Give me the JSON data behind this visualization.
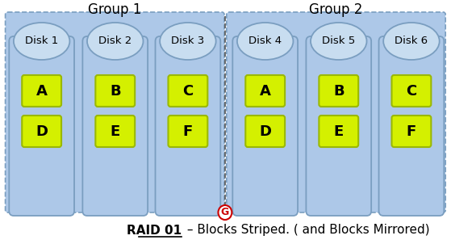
{
  "title": "RAID 01",
  "subtitle": " – Blocks Striped. ( and Blocks Mirrored)",
  "group1_label": "Group 1",
  "group2_label": "Group 2",
  "disk_labels": [
    "Disk 1",
    "Disk 2",
    "Disk 3",
    "Disk 4",
    "Disk 5",
    "Disk 6"
  ],
  "block_labels_group1": [
    [
      "A",
      "D"
    ],
    [
      "B",
      "E"
    ],
    [
      "C",
      "F"
    ]
  ],
  "block_labels_group2": [
    [
      "A",
      "D"
    ],
    [
      "B",
      "E"
    ],
    [
      "C",
      "F"
    ]
  ],
  "disk_body_color": "#adc8e8",
  "disk_top_color": "#c8ddf0",
  "disk_border_color": "#7a9ec0",
  "block_color": "#d4f000",
  "block_border_color": "#9ab800",
  "background_color": "#ffffff",
  "group_box_color": "#adc8e8",
  "group_box_border": "#7a9ec0",
  "separator_color": "#555555",
  "g_icon_color": "#cc0000",
  "fig_width": 5.9,
  "fig_height": 3.02
}
